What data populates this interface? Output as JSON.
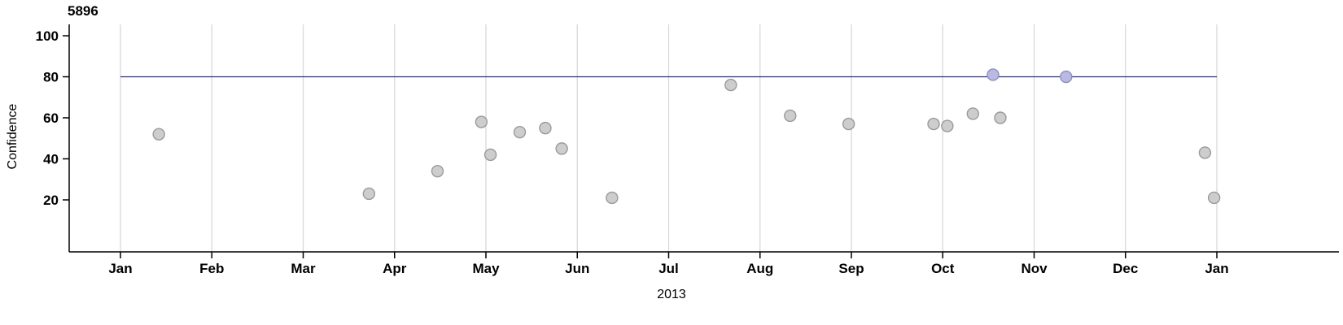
{
  "title": "5896",
  "chart_data": {
    "type": "scatter",
    "title": "5896",
    "xlabel": "2013",
    "ylabel": "Confidence",
    "x_tick_labels": [
      "Jan",
      "Feb",
      "Mar",
      "Apr",
      "May",
      "Jun",
      "Jul",
      "Aug",
      "Sep",
      "Oct",
      "Nov",
      "Dec",
      "Jan"
    ],
    "y_ticks": [
      20,
      40,
      60,
      80,
      100
    ],
    "ylim": [
      -5,
      105
    ],
    "grid": "vertical-month-gridlines",
    "legend": "none",
    "reference_line": {
      "y": 80,
      "x_start_month": 0,
      "x_end_month": 12
    },
    "points": [
      {
        "month": 0.42,
        "y": 52,
        "highlight": false
      },
      {
        "month": 2.72,
        "y": 23,
        "highlight": false
      },
      {
        "month": 3.47,
        "y": 34,
        "highlight": false
      },
      {
        "month": 3.95,
        "y": 58,
        "highlight": false
      },
      {
        "month": 4.05,
        "y": 42,
        "highlight": false
      },
      {
        "month": 4.37,
        "y": 53,
        "highlight": false
      },
      {
        "month": 4.65,
        "y": 55,
        "highlight": false
      },
      {
        "month": 4.83,
        "y": 45,
        "highlight": false
      },
      {
        "month": 5.38,
        "y": 21,
        "highlight": false
      },
      {
        "month": 6.68,
        "y": 76,
        "highlight": false
      },
      {
        "month": 7.33,
        "y": 61,
        "highlight": false
      },
      {
        "month": 7.97,
        "y": 57,
        "highlight": false
      },
      {
        "month": 8.9,
        "y": 57,
        "highlight": false
      },
      {
        "month": 9.05,
        "y": 56,
        "highlight": false
      },
      {
        "month": 9.33,
        "y": 62,
        "highlight": false
      },
      {
        "month": 9.55,
        "y": 81,
        "highlight": true
      },
      {
        "month": 9.63,
        "y": 60,
        "highlight": false
      },
      {
        "month": 10.35,
        "y": 80,
        "highlight": true
      },
      {
        "month": 11.87,
        "y": 43,
        "highlight": false
      },
      {
        "month": 11.97,
        "y": 21,
        "highlight": false
      }
    ],
    "colors": {
      "point_fill": "#cdcdcd",
      "point_stroke": "#9a9a9a",
      "highlight_fill": "#b9b9e2",
      "highlight_stroke": "#8f8fc6",
      "gridline": "#d9d9d9",
      "axis": "#000000",
      "ref_line": "#2d2d86"
    }
  }
}
